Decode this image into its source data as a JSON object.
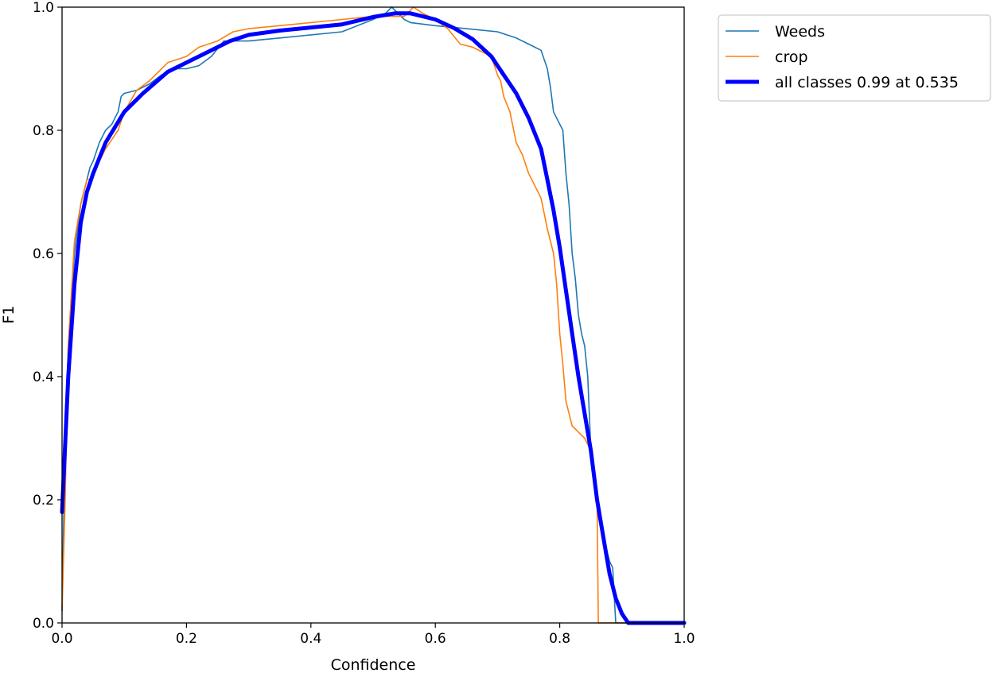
{
  "chart_data": {
    "type": "line",
    "title": "",
    "xlabel": "Confidence",
    "ylabel": "F1",
    "xlim": [
      0,
      1
    ],
    "ylim": [
      0,
      1
    ],
    "xticks": [
      "0.0",
      "0.2",
      "0.4",
      "0.6",
      "0.8",
      "1.0"
    ],
    "yticks": [
      "0.0",
      "0.2",
      "0.4",
      "0.6",
      "0.8",
      "1.0"
    ],
    "grid": false,
    "legend_position": "outside-top-right",
    "series": [
      {
        "name": "Weeds",
        "color": "#1f77b4",
        "x": [
          0.0,
          0.005,
          0.01,
          0.02,
          0.03,
          0.04,
          0.045,
          0.05,
          0.055,
          0.06,
          0.07,
          0.08,
          0.09,
          0.095,
          0.1,
          0.12,
          0.14,
          0.16,
          0.18,
          0.2,
          0.22,
          0.24,
          0.26,
          0.3,
          0.35,
          0.4,
          0.45,
          0.5,
          0.52,
          0.53,
          0.54,
          0.55,
          0.56,
          0.6,
          0.65,
          0.7,
          0.73,
          0.75,
          0.77,
          0.78,
          0.785,
          0.79,
          0.8,
          0.805,
          0.81,
          0.815,
          0.82,
          0.825,
          0.83,
          0.835,
          0.84,
          0.845,
          0.85,
          0.86,
          0.87,
          0.88,
          0.885,
          0.89,
          0.9,
          0.95,
          1.0
        ],
        "values": [
          0.02,
          0.3,
          0.45,
          0.6,
          0.68,
          0.72,
          0.74,
          0.75,
          0.765,
          0.78,
          0.8,
          0.81,
          0.83,
          0.855,
          0.86,
          0.865,
          0.875,
          0.89,
          0.9,
          0.9,
          0.905,
          0.92,
          0.945,
          0.945,
          0.95,
          0.955,
          0.96,
          0.98,
          0.99,
          1.0,
          0.99,
          0.98,
          0.975,
          0.97,
          0.965,
          0.96,
          0.95,
          0.94,
          0.93,
          0.9,
          0.87,
          0.83,
          0.81,
          0.8,
          0.73,
          0.68,
          0.6,
          0.56,
          0.5,
          0.47,
          0.45,
          0.4,
          0.28,
          0.2,
          0.14,
          0.1,
          0.09,
          0.0,
          0.0,
          0.0,
          0.0
        ]
      },
      {
        "name": "crop",
        "color": "#ff7f0e",
        "x": [
          0.0,
          0.005,
          0.01,
          0.02,
          0.03,
          0.035,
          0.04,
          0.045,
          0.05,
          0.06,
          0.07,
          0.08,
          0.09,
          0.1,
          0.12,
          0.14,
          0.17,
          0.2,
          0.22,
          0.25,
          0.275,
          0.3,
          0.35,
          0.4,
          0.45,
          0.5,
          0.55,
          0.565,
          0.58,
          0.6,
          0.62,
          0.64,
          0.66,
          0.69,
          0.7,
          0.705,
          0.71,
          0.72,
          0.73,
          0.74,
          0.75,
          0.76,
          0.77,
          0.78,
          0.79,
          0.795,
          0.8,
          0.805,
          0.81,
          0.82,
          0.83,
          0.84,
          0.85,
          0.855,
          0.86,
          0.862,
          1.0
        ],
        "values": [
          0.02,
          0.2,
          0.45,
          0.62,
          0.68,
          0.7,
          0.72,
          0.72,
          0.73,
          0.75,
          0.77,
          0.785,
          0.8,
          0.83,
          0.865,
          0.88,
          0.91,
          0.92,
          0.935,
          0.945,
          0.96,
          0.965,
          0.97,
          0.975,
          0.98,
          0.985,
          0.985,
          1.0,
          0.99,
          0.98,
          0.965,
          0.94,
          0.935,
          0.92,
          0.89,
          0.88,
          0.855,
          0.83,
          0.78,
          0.76,
          0.73,
          0.71,
          0.69,
          0.64,
          0.6,
          0.55,
          0.47,
          0.42,
          0.36,
          0.32,
          0.31,
          0.3,
          0.28,
          0.25,
          0.2,
          0.0,
          0.0
        ]
      },
      {
        "name": "all classes 0.99 at 0.535",
        "color": "#0000ff",
        "x": [
          0.0,
          0.01,
          0.02,
          0.03,
          0.04,
          0.05,
          0.07,
          0.1,
          0.13,
          0.17,
          0.2,
          0.23,
          0.27,
          0.3,
          0.35,
          0.4,
          0.45,
          0.5,
          0.535,
          0.56,
          0.6,
          0.63,
          0.66,
          0.69,
          0.71,
          0.73,
          0.75,
          0.77,
          0.78,
          0.79,
          0.8,
          0.81,
          0.82,
          0.83,
          0.84,
          0.85,
          0.86,
          0.87,
          0.88,
          0.89,
          0.9,
          0.91,
          1.0
        ],
        "values": [
          0.18,
          0.4,
          0.55,
          0.65,
          0.7,
          0.73,
          0.78,
          0.83,
          0.86,
          0.895,
          0.91,
          0.925,
          0.945,
          0.955,
          0.962,
          0.967,
          0.972,
          0.984,
          0.99,
          0.99,
          0.98,
          0.966,
          0.948,
          0.92,
          0.89,
          0.86,
          0.82,
          0.77,
          0.72,
          0.67,
          0.61,
          0.54,
          0.47,
          0.4,
          0.34,
          0.28,
          0.2,
          0.14,
          0.08,
          0.04,
          0.015,
          0.0,
          0.0
        ]
      }
    ]
  }
}
